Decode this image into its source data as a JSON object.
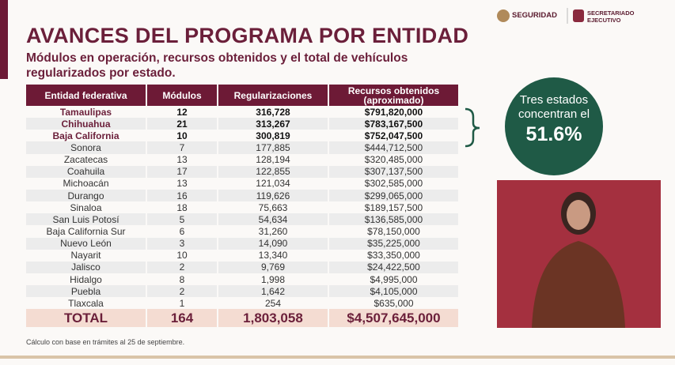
{
  "header": {
    "logo_left": "SEGURIDAD",
    "logo_right": "SECRETARIADO EJECUTIVO"
  },
  "title": "AVANCES DEL PROGRAMA POR ENTIDAD",
  "subtitle": "Módulos en operación, recursos obtenidos y el total de vehículos regularizados por estado.",
  "table": {
    "columns": [
      "Entidad federativa",
      "Módulos",
      "Regularizaciones",
      "Recursos obtenidos (aproximado)"
    ],
    "rows": [
      [
        "Tamaulipas",
        "12",
        "316,728",
        "$791,820,000"
      ],
      [
        "Chihuahua",
        "21",
        "313,267",
        "$783,167,500"
      ],
      [
        "Baja California",
        "10",
        "300,819",
        "$752,047,500"
      ],
      [
        "Sonora",
        "7",
        "177,885",
        "$444,712,500"
      ],
      [
        "Zacatecas",
        "13",
        "128,194",
        "$320,485,000"
      ],
      [
        "Coahuila",
        "17",
        "122,855",
        "$307,137,500"
      ],
      [
        "Michoacán",
        "13",
        "121,034",
        "$302,585,000"
      ],
      [
        "Durango",
        "16",
        "119,626",
        "$299,065,000"
      ],
      [
        "Sinaloa",
        "18",
        "75,663",
        "$189,157,500"
      ],
      [
        "San Luis Potosí",
        "5",
        "54,634",
        "$136,585,000"
      ],
      [
        "Baja California Sur",
        "6",
        "31,260",
        "$78,150,000"
      ],
      [
        "Nuevo León",
        "3",
        "14,090",
        "$35,225,000"
      ],
      [
        "Nayarit",
        "10",
        "13,340",
        "$33,350,000"
      ],
      [
        "Jalisco",
        "2",
        "9,769",
        "$24,422,500"
      ],
      [
        "Hidalgo",
        "8",
        "1,998",
        "$4,995,000"
      ],
      [
        "Puebla",
        "2",
        "1,642",
        "$4,105,000"
      ],
      [
        "Tlaxcala",
        "1",
        "254",
        "$635,000"
      ]
    ],
    "total": [
      "TOTAL",
      "164",
      "1,803,058",
      "$4,507,645,000"
    ]
  },
  "footnote": "Cálculo con base en trámites al 25 de septiembre.",
  "callout": {
    "text": "Tres estados concentran el",
    "value": "51.6%"
  }
}
